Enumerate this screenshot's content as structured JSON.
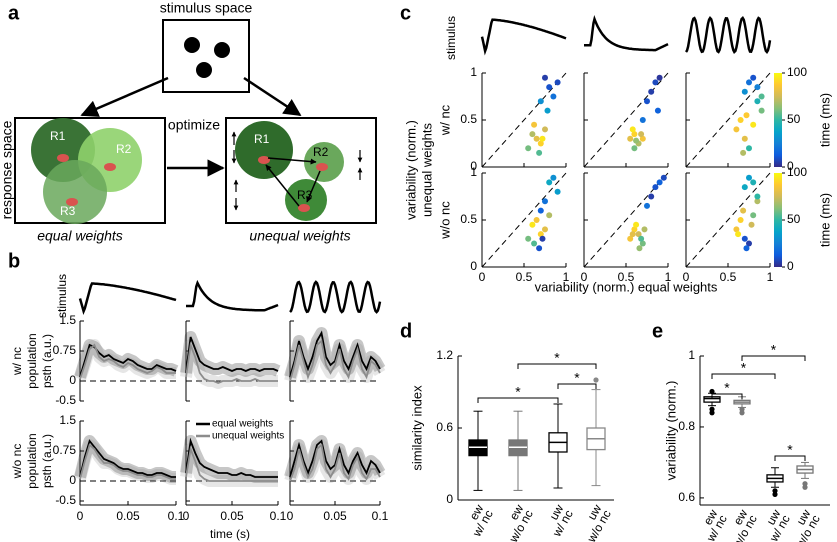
{
  "panel_labels": [
    "a",
    "b",
    "c",
    "d",
    "e"
  ],
  "diagram": {
    "stimulus_space": "stimulus space",
    "response_space": "response space",
    "optimize": "optimize",
    "left_caption": "equal weights",
    "right_caption": "unequal weights",
    "nodes": [
      "R1",
      "R2",
      "R3"
    ]
  },
  "chart_data": [
    {
      "type": "line",
      "stimulus_label": "stimulus",
      "xlabel": "time (s)",
      "row_labels": [
        [
          "w/ nc",
          "population",
          "psth (a.u.)"
        ],
        [
          "w/o nc",
          "population",
          "psth (a.u.)"
        ]
      ],
      "x": [
        0,
        0.005,
        0.01,
        0.015,
        0.02,
        0.025,
        0.03,
        0.035,
        0.04,
        0.045,
        0.05,
        0.055,
        0.06,
        0.065,
        0.07,
        0.075,
        0.08,
        0.085,
        0.09,
        0.095,
        0.1
      ],
      "xlim": [
        0,
        0.1
      ],
      "xticks": [
        0,
        0.05,
        0.1
      ],
      "ylim": [
        -0.5,
        1.5
      ],
      "yticks": [
        -0.5,
        0,
        0.75,
        1.5
      ],
      "series": [
        {
          "name": "equal weights",
          "color": "#000000",
          "values": [
            [
              0.1,
              0.5,
              0.9,
              0.85,
              0.7,
              0.6,
              0.65,
              0.55,
              0.5,
              0.45,
              0.55,
              0.5,
              0.4,
              0.35,
              0.3,
              0.3,
              0.4,
              0.35,
              0.3,
              0.3,
              0.25
            ],
            [
              0.2,
              1.1,
              0.8,
              0.5,
              0.4,
              0.35,
              0.3,
              0.3,
              0.35,
              0.3,
              0.25,
              0.3,
              0.3,
              0.25,
              0.3,
              0.3,
              0.25,
              0.3,
              0.3,
              0.3,
              0.25
            ],
            [
              0.1,
              0.5,
              1.0,
              0.6,
              0.3,
              0.6,
              1.0,
              1.2,
              0.6,
              0.4,
              0.5,
              0.9,
              0.5,
              0.3,
              0.6,
              0.9,
              0.5,
              0.3,
              0.6,
              0.5,
              0.3
            ],
            [
              0.1,
              0.6,
              1.0,
              0.85,
              0.7,
              0.55,
              0.5,
              0.45,
              0.35,
              0.3,
              0.3,
              0.25,
              0.2,
              0.2,
              0.15,
              0.15,
              0.2,
              0.2,
              0.15,
              0.1,
              0.1
            ],
            [
              0.2,
              1.0,
              0.7,
              0.45,
              0.35,
              0.3,
              0.25,
              0.2,
              0.2,
              0.2,
              0.15,
              0.15,
              0.2,
              0.15,
              0.15,
              0.1,
              0.1,
              0.1,
              0.1,
              0.1,
              0.1
            ],
            [
              0.1,
              0.5,
              0.9,
              0.5,
              0.2,
              0.5,
              0.9,
              1.0,
              0.5,
              0.3,
              0.4,
              0.8,
              0.4,
              0.2,
              0.5,
              0.7,
              0.4,
              0.2,
              0.5,
              0.4,
              0.2
            ]
          ]
        },
        {
          "name": "unequal weights",
          "color": "#8c8c8c",
          "values": [
            [
              0.05,
              0.4,
              0.8,
              0.9,
              0.6,
              0.5,
              0.55,
              0.5,
              0.4,
              0.35,
              0.45,
              0.4,
              0.3,
              0.25,
              0.2,
              0.25,
              0.35,
              0.3,
              0.2,
              0.2,
              0.2
            ],
            [
              0.1,
              0.9,
              0.6,
              0.2,
              0.05,
              0,
              0,
              -0.05,
              0,
              0,
              0,
              0.05,
              0,
              0,
              0,
              0.05,
              0,
              0,
              0,
              0,
              0
            ],
            [
              0,
              0.4,
              0.9,
              0.5,
              0.1,
              0.4,
              0.9,
              1.0,
              0.4,
              0.2,
              0.4,
              0.8,
              0.3,
              0.1,
              0.5,
              0.8,
              0.3,
              0.1,
              0.5,
              0.4,
              0.2
            ],
            [
              0.05,
              0.5,
              0.9,
              0.8,
              0.6,
              0.45,
              0.45,
              0.4,
              0.3,
              0.25,
              0.25,
              0.2,
              0.15,
              0.15,
              0.1,
              0.1,
              0.15,
              0.15,
              0.1,
              0.05,
              0.05
            ],
            [
              0.1,
              0.8,
              0.5,
              0.15,
              0.05,
              0,
              0,
              0,
              0,
              0,
              0,
              0,
              0,
              0,
              0,
              0,
              0,
              0,
              0,
              0,
              0
            ],
            [
              0,
              0.3,
              0.8,
              0.4,
              0.1,
              0.3,
              0.8,
              0.9,
              0.3,
              0.1,
              0.3,
              0.7,
              0.2,
              0.05,
              0.4,
              0.6,
              0.2,
              0.05,
              0.3,
              0.3,
              0.1
            ]
          ]
        }
      ]
    },
    {
      "type": "scatter",
      "stimulus_label": "stimulus",
      "row_labels": [
        "w/ nc",
        "w/o nc"
      ],
      "xlabel": "variability (norm.) equal weights",
      "ylabel": [
        "variability (norm.)",
        "unequal weights"
      ],
      "xlim": [
        0,
        1
      ],
      "ylim": [
        0,
        1
      ],
      "xticks": [
        0,
        0.5,
        1
      ],
      "yticks": [
        0,
        0.5,
        1
      ],
      "colorbar": {
        "label": "time (ms)",
        "lim": [
          0,
          100
        ],
        "ticks": [
          0,
          50,
          100
        ],
        "colormap": [
          "#352a87",
          "#0f5cdd",
          "#1481d6",
          "#06a4ca",
          "#2eb7a4",
          "#87bf77",
          "#d1bb59",
          "#fec832",
          "#f9fb0e"
        ]
      },
      "panels": [
        {
          "x": [
            0.75,
            0.8,
            0.85,
            0.9,
            0.7,
            0.78,
            0.6,
            0.65,
            0.7,
            0.75,
            0.55,
            0.62,
            0.68,
            0.72
          ],
          "y": [
            0.95,
            0.85,
            0.75,
            0.9,
            0.7,
            0.6,
            0.35,
            0.3,
            0.25,
            0.4,
            0.2,
            0.45,
            0.15,
            0.3
          ],
          "time": [
            5,
            10,
            20,
            8,
            30,
            35,
            70,
            80,
            90,
            75,
            60,
            85,
            55,
            95
          ]
        },
        {
          "x": [
            0.75,
            0.8,
            0.85,
            0.9,
            0.88,
            0.7,
            0.55,
            0.6,
            0.65,
            0.7,
            0.6,
            0.58,
            0.68,
            0.62
          ],
          "y": [
            0.7,
            0.8,
            0.9,
            0.95,
            0.6,
            0.5,
            0.3,
            0.35,
            0.25,
            0.3,
            0.2,
            0.4,
            0.35,
            0.28
          ],
          "time": [
            10,
            5,
            8,
            3,
            15,
            20,
            80,
            90,
            70,
            85,
            60,
            95,
            75,
            65
          ]
        },
        {
          "x": [
            0.7,
            0.75,
            0.8,
            0.85,
            0.9,
            0.65,
            0.7,
            0.6,
            0.75,
            0.8,
            0.85,
            0.68,
            0.72,
            0.9
          ],
          "y": [
            0.8,
            0.9,
            0.95,
            0.85,
            0.6,
            0.5,
            0.3,
            0.4,
            0.2,
            0.45,
            0.7,
            0.15,
            0.55,
            0.75
          ],
          "time": [
            30,
            20,
            10,
            25,
            60,
            90,
            80,
            85,
            50,
            95,
            45,
            70,
            88,
            55
          ]
        },
        {
          "x": [
            0.8,
            0.85,
            0.9,
            0.75,
            0.7,
            0.6,
            0.65,
            0.7,
            0.75,
            0.55,
            0.62,
            0.8,
            0.68,
            0.72
          ],
          "y": [
            0.9,
            0.95,
            0.8,
            0.7,
            0.6,
            0.45,
            0.5,
            0.35,
            0.4,
            0.3,
            0.25,
            0.55,
            0.2,
            0.3
          ],
          "time": [
            40,
            30,
            35,
            20,
            15,
            95,
            85,
            90,
            80,
            60,
            55,
            70,
            10,
            5
          ]
        },
        {
          "x": [
            0.8,
            0.85,
            0.9,
            0.95,
            0.75,
            0.55,
            0.6,
            0.65,
            0.7,
            0.62,
            0.58,
            0.68,
            0.72,
            0.66
          ],
          "y": [
            0.75,
            0.85,
            0.9,
            0.95,
            0.65,
            0.3,
            0.4,
            0.35,
            0.25,
            0.45,
            0.35,
            0.3,
            0.4,
            0.2
          ],
          "time": [
            5,
            10,
            15,
            8,
            20,
            85,
            90,
            75,
            60,
            95,
            80,
            55,
            70,
            65
          ]
        },
        {
          "x": [
            0.7,
            0.75,
            0.8,
            0.85,
            0.65,
            0.6,
            0.7,
            0.75,
            0.68,
            0.8,
            0.85,
            0.72,
            0.62,
            0.78
          ],
          "y": [
            0.85,
            0.95,
            0.9,
            0.7,
            0.5,
            0.4,
            0.3,
            0.25,
            0.6,
            0.55,
            0.75,
            0.2,
            0.35,
            0.45
          ],
          "time": [
            40,
            35,
            45,
            70,
            90,
            85,
            10,
            5,
            80,
            60,
            50,
            15,
            95,
            75
          ]
        }
      ]
    },
    {
      "type": "box",
      "ylabel": "similarity index",
      "ylim": [
        0,
        1.2
      ],
      "yticks": [
        0,
        0.6,
        1.2
      ],
      "categories": [
        [
          "ew",
          "w/ nc"
        ],
        [
          "ew",
          "w/o nc"
        ],
        [
          "uw",
          "w/ nc"
        ],
        [
          "uw",
          "w/o nc"
        ]
      ],
      "boxes": [
        {
          "min": 0.08,
          "q1": 0.37,
          "median": 0.44,
          "q3": 0.5,
          "max": 0.74,
          "outliers": [],
          "fill": "#000000",
          "edge": "#000000",
          "median_color": "#ffffff"
        },
        {
          "min": 0.08,
          "q1": 0.37,
          "median": 0.44,
          "q3": 0.5,
          "max": 0.74,
          "outliers": [],
          "fill": "#777777",
          "edge": "#777777",
          "median_color": "#ffffff"
        },
        {
          "min": 0.1,
          "q1": 0.4,
          "median": 0.48,
          "q3": 0.56,
          "max": 0.8,
          "outliers": [],
          "fill": "#ffffff",
          "edge": "#000000",
          "median_color": "#000000"
        },
        {
          "min": 0.12,
          "q1": 0.42,
          "median": 0.51,
          "q3": 0.6,
          "max": 0.92,
          "outliers": [
            1.0
          ],
          "fill": "#ffffff",
          "edge": "#888888",
          "median_color": "#888888"
        }
      ],
      "annotations": [
        "*",
        "*",
        "*"
      ]
    },
    {
      "type": "box",
      "ylabel": "variability (norm.)",
      "ylim": [
        0.58,
        1
      ],
      "yticks": [
        0.6,
        0.8,
        1
      ],
      "categories": [
        [
          "ew",
          "w/ nc"
        ],
        [
          "ew",
          "w/o nc"
        ],
        [
          "uw",
          "w/ nc"
        ],
        [
          "uw",
          "w/o nc"
        ]
      ],
      "boxes": [
        {
          "min": 0.86,
          "q1": 0.87,
          "median": 0.88,
          "q3": 0.885,
          "max": 0.895,
          "outliers": [
            0.84,
            0.85,
            0.9
          ],
          "fill": "#ffffff",
          "edge": "#000000",
          "median_color": "#000000"
        },
        {
          "min": 0.855,
          "q1": 0.865,
          "median": 0.87,
          "q3": 0.875,
          "max": 0.885,
          "outliers": [
            0.84,
            0.85
          ],
          "fill": "#ffffff",
          "edge": "#777777",
          "median_color": "#777777"
        },
        {
          "min": 0.63,
          "q1": 0.645,
          "median": 0.655,
          "q3": 0.665,
          "max": 0.685,
          "outliers": [
            0.62,
            0.61
          ],
          "fill": "#ffffff",
          "edge": "#000000",
          "median_color": "#000000"
        },
        {
          "min": 0.655,
          "q1": 0.67,
          "median": 0.68,
          "q3": 0.69,
          "max": 0.7,
          "outliers": [
            0.64,
            0.63
          ],
          "fill": "#ffffff",
          "edge": "#777777",
          "median_color": "#777777"
        }
      ],
      "annotations": [
        "*",
        "*",
        "*",
        "*"
      ]
    }
  ]
}
